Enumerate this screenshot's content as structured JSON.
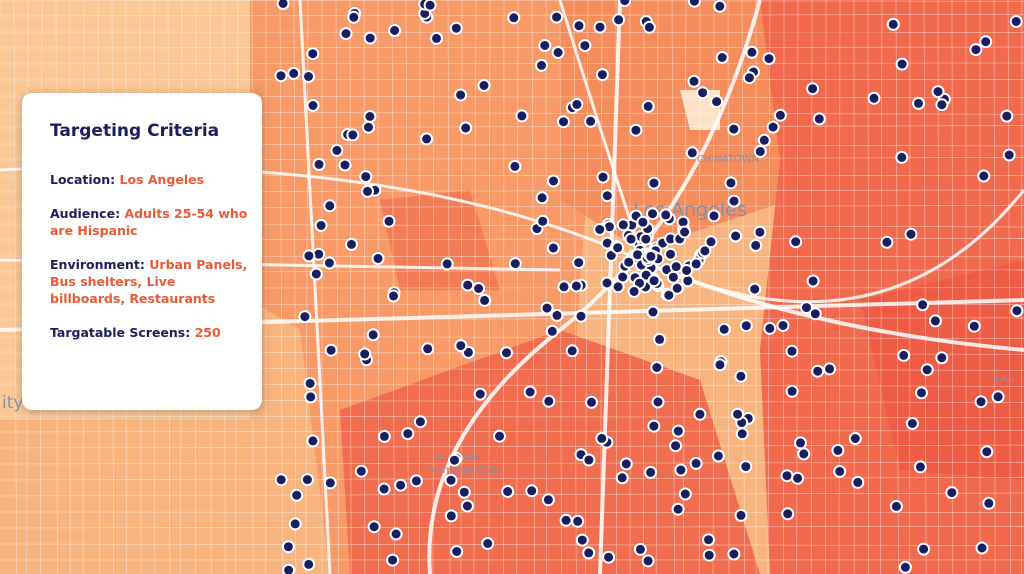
{
  "panel": {
    "title": "Targeting Criteria",
    "location": {
      "label": "Location:",
      "value": "Los Angeles"
    },
    "audience": {
      "label": "Audience:",
      "value": "Adults 25-54 who are Hispanic"
    },
    "environment": {
      "label": "Environment:",
      "value": "Urban Panels, Bus shelters, Live billboards, Restaurants"
    },
    "screens": {
      "label": "Targatable Screens:",
      "value": 250
    }
  },
  "map": {
    "labels": {
      "city": "Los Angeles",
      "chinatown": "CHINATOWN",
      "coliseum_1": "Los Angel",
      "coliseum_2": "Memorial Colis",
      "left_edge": "ity",
      "right_edge": "EAS"
    }
  }
}
